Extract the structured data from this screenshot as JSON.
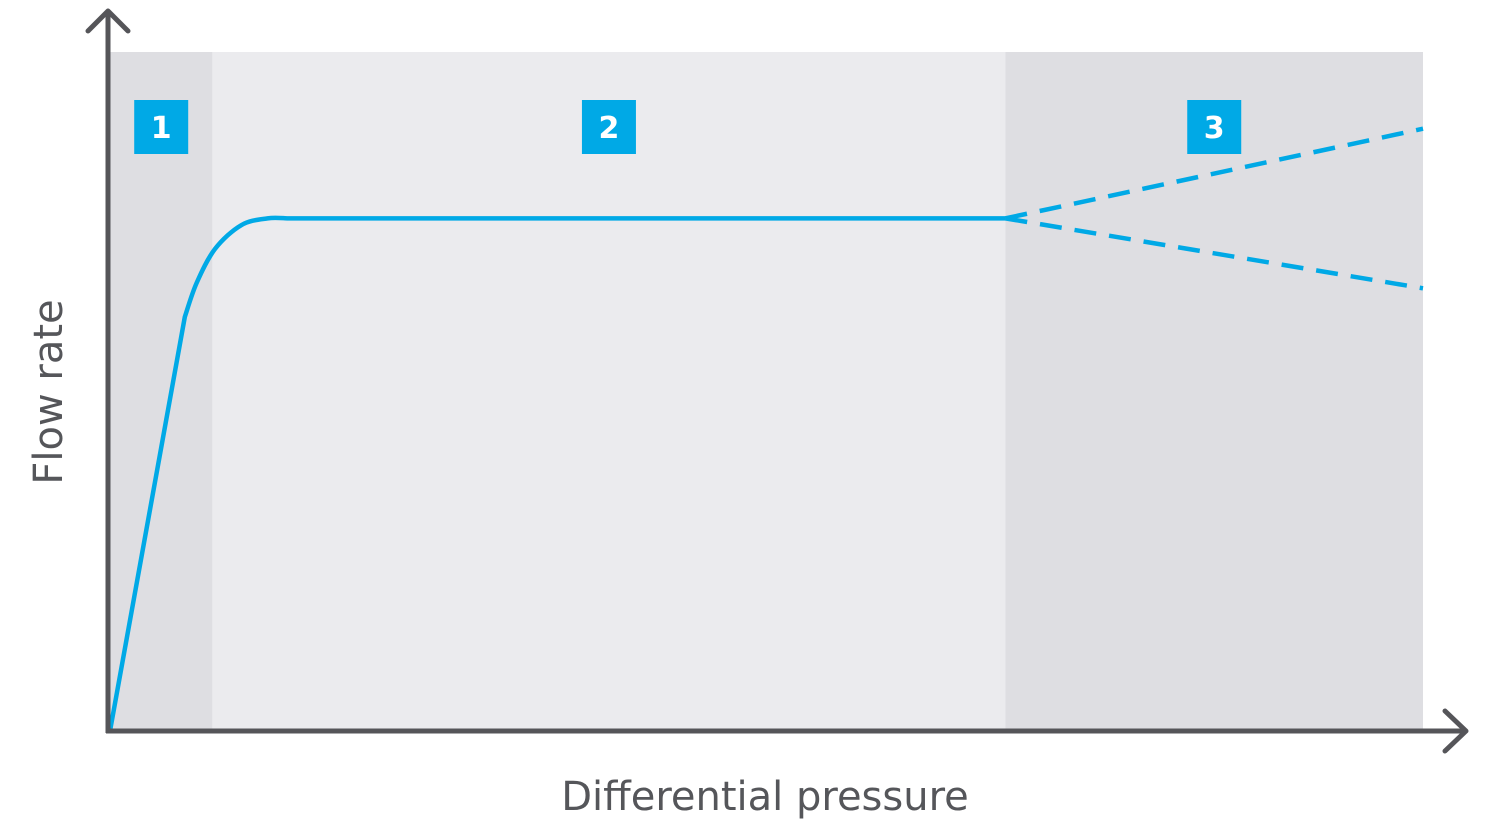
{
  "colors": {
    "zone_dark": "#dedee2",
    "zone_light": "#ebebee",
    "curve": "#00a9e6",
    "badge": "#00a9e6",
    "badge_text": "#ffffff",
    "axis": "#555559",
    "axis_text": "#55565a"
  },
  "chart_data": {
    "type": "line",
    "title": "",
    "xlabel": "Differential pressure",
    "ylabel": "Flow rate",
    "xlim": [
      0,
      100
    ],
    "ylim": [
      0,
      100
    ],
    "grid": false,
    "zones": [
      {
        "label": "1",
        "x_start": 0,
        "x_end": 7.8,
        "shade": "dark"
      },
      {
        "label": "2",
        "x_start": 7.8,
        "x_end": 68.2,
        "shade": "light"
      },
      {
        "label": "3",
        "x_start": 68.2,
        "x_end": 100,
        "shade": "dark"
      }
    ],
    "series": [
      {
        "style": "solid",
        "x": [
          0,
          5.7,
          6.6,
          8.0,
          10.0,
          12.0,
          13.5,
          40.0,
          68.2
        ],
        "y": [
          0,
          61,
          66,
          71,
          74.5,
          75.5,
          75.5,
          75.5,
          75.5
        ]
      },
      {
        "style": "dashed",
        "x": [
          68.2,
          100
        ],
        "y": [
          75.5,
          88.7
        ]
      },
      {
        "style": "dashed",
        "x": [
          68.2,
          100
        ],
        "y": [
          75.5,
          65.2
        ]
      }
    ]
  }
}
